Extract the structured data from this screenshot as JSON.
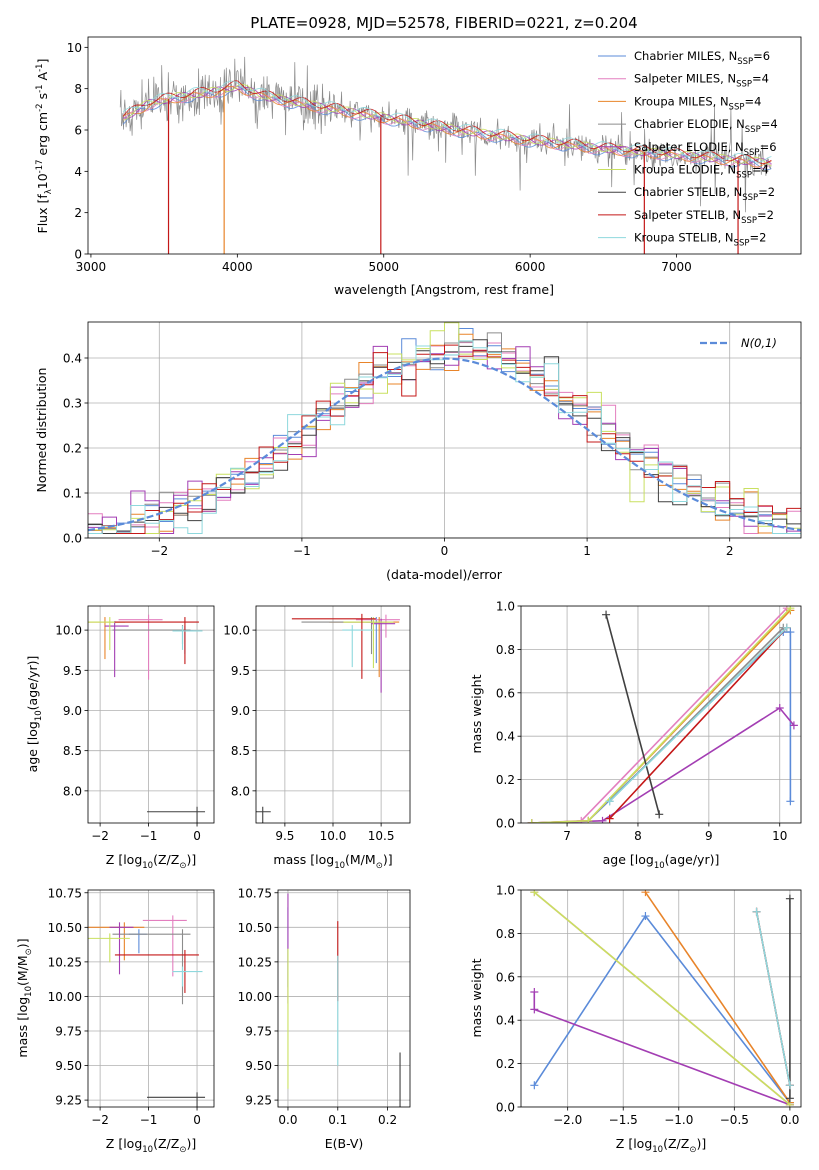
{
  "chart_data": [
    {
      "id": "spectrum",
      "type": "line",
      "title": "PLATE=0928, MJD=52578, FIBERID=0221, z=0.204",
      "xlabel": "wavelength [Angstrom, rest frame]",
      "ylabel": "Flux [f$_\\lambda$10$^{-17}$ erg cm$^{-2}$ s$^{-1}$ A$^{-1}$]",
      "xlim": [
        2980,
        7850
      ],
      "ylim": [
        0,
        10.5
      ],
      "xticks": [
        3000,
        4000,
        5000,
        6000,
        7000
      ],
      "yticks": [
        0,
        2,
        4,
        6,
        8,
        10
      ],
      "legend_position": "top-right",
      "data_envelope": {
        "x": [
          3200,
          3400,
          3600,
          3800,
          4000,
          4200,
          4500,
          5000,
          5500,
          6000,
          6500,
          7000,
          7300,
          7650
        ],
        "y": [
          6.5,
          7.3,
          7.6,
          7.8,
          8.1,
          7.6,
          7.2,
          6.6,
          6.0,
          5.5,
          5.1,
          4.8,
          4.6,
          4.4
        ]
      },
      "model_dips_x": [
        3530,
        3910,
        4980,
        6780,
        7420
      ],
      "series": [
        {
          "name": "Chabrier MILES, N$_{SSP}$=6",
          "color": "#5b8bd9"
        },
        {
          "name": "Salpeter MILES, N$_{SSP}$=4",
          "color": "#e37fbf"
        },
        {
          "name": "Kroupa MILES, N$_{SSP}$=4",
          "color": "#e8842a"
        },
        {
          "name": "Chabrier ELODIE, N$_{SSP}$=4",
          "color": "#8c8c8c"
        },
        {
          "name": "Salpeter ELODIE, N$_{SSP}$=6",
          "color": "#a33eb3"
        },
        {
          "name": "Kroupa ELODIE, N$_{SSP}$=4",
          "color": "#c9e060"
        },
        {
          "name": "Chabrier STELIB, N$_{SSP}$=2",
          "color": "#404040"
        },
        {
          "name": "Salpeter STELIB, N$_{SSP}$=2",
          "color": "#c41818"
        },
        {
          "name": "Kroupa STELIB, N$_{SSP}$=2",
          "color": "#8ed8dd"
        }
      ]
    },
    {
      "id": "residuals",
      "type": "line",
      "xlabel": "(data-model)/error",
      "ylabel": "Normed distribution",
      "xlim": [
        -2.5,
        2.5
      ],
      "ylim": [
        0,
        0.48
      ],
      "xticks": [
        -2,
        -1,
        0,
        1,
        2
      ],
      "yticks": [
        0.0,
        0.1,
        0.2,
        0.3,
        0.4
      ],
      "legend": "$\\mathcal{N}(0,1)$",
      "legend_position": "top-right",
      "grid": true
    },
    {
      "id": "age_vs_Z",
      "type": "scatter",
      "xlabel": "Z [log$_{10}$(Z/Z$_\\odot$)]",
      "ylabel": "age  [log$_{10}$(age/yr)]",
      "xlim": [
        -2.25,
        0.35
      ],
      "ylim": [
        7.6,
        10.3
      ],
      "xticks": [
        -2,
        -1,
        0
      ],
      "yticks": [
        8.0,
        8.5,
        9.0,
        9.5,
        10.0
      ],
      "grid": true,
      "points": [
        {
          "s": 0,
          "x": -0.25,
          "y": 9.99
        },
        {
          "s": 1,
          "x": -1.0,
          "y": 10.13
        },
        {
          "s": 2,
          "x": -1.9,
          "y": 10.1
        },
        {
          "s": 3,
          "x": -0.3,
          "y": 10.0
        },
        {
          "s": 4,
          "x": -1.7,
          "y": 10.05
        },
        {
          "s": 5,
          "x": -1.8,
          "y": 10.1
        },
        {
          "s": 6,
          "x": 0.0,
          "y": 7.74
        },
        {
          "s": 7,
          "x": -0.25,
          "y": 10.1
        },
        {
          "s": 8,
          "x": -0.3,
          "y": 9.99
        }
      ]
    },
    {
      "id": "age_vs_mass",
      "type": "scatter",
      "xlabel": "mass [log$_{10}$(M/M$_\\odot$)]",
      "ylabel": "",
      "xlim": [
        9.2,
        10.8
      ],
      "ylim": [
        7.6,
        10.3
      ],
      "xticks": [
        9.5,
        10.0,
        10.5
      ],
      "yticks": [
        8.0,
        8.5,
        9.0,
        9.5,
        10.0
      ],
      "grid": true,
      "points": [
        {
          "s": 0,
          "x": 10.45,
          "y": 10.1
        },
        {
          "s": 1,
          "x": 10.55,
          "y": 10.13
        },
        {
          "s": 2,
          "x": 10.48,
          "y": 10.1
        },
        {
          "s": 3,
          "x": 10.4,
          "y": 10.1
        },
        {
          "s": 4,
          "x": 10.5,
          "y": 10.08
        },
        {
          "s": 5,
          "x": 10.42,
          "y": 10.1
        },
        {
          "s": 6,
          "x": 9.27,
          "y": 7.74
        },
        {
          "s": 7,
          "x": 10.3,
          "y": 10.14
        },
        {
          "s": 8,
          "x": 10.2,
          "y": 10.0
        }
      ]
    },
    {
      "id": "weight_vs_age",
      "type": "line",
      "xlabel": "age  [log$_{10}$(age/yr)]",
      "ylabel": "mass weight",
      "xlim": [
        6.35,
        10.3
      ],
      "ylim": [
        0,
        1.0
      ],
      "xticks": [
        7,
        8,
        9,
        10
      ],
      "yticks": [
        0.0,
        0.2,
        0.4,
        0.6,
        0.8,
        1.0
      ],
      "grid": true,
      "series_points": [
        {
          "s": 0,
          "x": [
            6.5,
            7.3,
            10.05,
            10.15,
            10.15
          ],
          "y": [
            0.0,
            0.01,
            0.88,
            0.88,
            0.1
          ]
        },
        {
          "s": 1,
          "x": [
            6.5,
            7.2,
            10.1
          ],
          "y": [
            0.0,
            0.01,
            0.99
          ]
        },
        {
          "s": 2,
          "x": [
            6.5,
            7.3,
            10.15
          ],
          "y": [
            0.0,
            0.01,
            0.98
          ]
        },
        {
          "s": 3,
          "x": [
            7.6,
            10.05
          ],
          "y": [
            0.1,
            0.9
          ]
        },
        {
          "s": 4,
          "x": [
            6.5,
            7.5,
            10.0,
            10.2
          ],
          "y": [
            0.0,
            0.01,
            0.53,
            0.45
          ]
        },
        {
          "s": 5,
          "x": [
            6.5,
            7.3,
            10.15
          ],
          "y": [
            0.0,
            0.01,
            0.99
          ]
        },
        {
          "s": 6,
          "x": [
            7.55,
            8.3
          ],
          "y": [
            0.96,
            0.04
          ]
        },
        {
          "s": 7,
          "x": [
            7.6,
            10.1
          ],
          "y": [
            0.02,
            0.9
          ]
        },
        {
          "s": 8,
          "x": [
            7.6,
            10.1
          ],
          "y": [
            0.1,
            0.9
          ]
        }
      ]
    },
    {
      "id": "mass_vs_Z",
      "type": "scatter",
      "xlabel": "Z [log$_{10}$(Z/Z$_\\odot$)]",
      "ylabel": "mass [log$_{10}$(M/M$_\\odot$)]",
      "xlim": [
        -2.25,
        0.35
      ],
      "ylim": [
        9.2,
        10.77
      ],
      "xticks": [
        -2,
        -1,
        0
      ],
      "yticks": [
        9.25,
        9.5,
        9.75,
        10.0,
        10.25,
        10.5,
        10.75
      ],
      "grid": true,
      "points": [
        {
          "s": 0,
          "x": -1.2,
          "y": 10.45
        },
        {
          "s": 1,
          "x": -0.5,
          "y": 10.55
        },
        {
          "s": 2,
          "x": -1.5,
          "y": 10.5
        },
        {
          "s": 3,
          "x": -0.3,
          "y": 10.45
        },
        {
          "s": 4,
          "x": -1.6,
          "y": 10.5
        },
        {
          "s": 5,
          "x": -1.8,
          "y": 10.42
        },
        {
          "s": 6,
          "x": 0.0,
          "y": 9.27
        },
        {
          "s": 7,
          "x": -0.25,
          "y": 10.3
        },
        {
          "s": 8,
          "x": -0.3,
          "y": 10.18
        }
      ]
    },
    {
      "id": "mass_vs_EBV",
      "type": "scatter",
      "xlabel": "E(B-V)",
      "ylabel": "",
      "xlim": [
        -0.02,
        0.245
      ],
      "ylim": [
        9.2,
        10.77
      ],
      "xticks": [
        0.0,
        0.1,
        0.2
      ],
      "yticks": [
        9.25,
        9.5,
        9.75,
        10.0,
        10.25,
        10.5,
        10.75
      ],
      "grid": true,
      "points": [
        {
          "s": 0,
          "x": 0.0,
          "y": 10.5
        },
        {
          "s": 4,
          "x": 0.0,
          "y": 10.6
        },
        {
          "s": 5,
          "x": 0.0,
          "y": 10.2
        },
        {
          "s": 7,
          "x": 0.1,
          "y": 10.4
        },
        {
          "s": 8,
          "x": 0.1,
          "y": 10.15
        },
        {
          "s": 6,
          "x": 0.225,
          "y": 9.45
        }
      ]
    },
    {
      "id": "weight_vs_Z",
      "type": "line",
      "xlabel": "Z [log$_{10}$(Z/Z$_\\odot$)]",
      "ylabel": "mass weight",
      "xlim": [
        -2.42,
        0.1
      ],
      "ylim": [
        0,
        1.0
      ],
      "xticks": [
        -2.0,
        -1.5,
        -1.0,
        -0.5,
        0.0
      ],
      "yticks": [
        0.0,
        0.2,
        0.4,
        0.6,
        0.8,
        1.0
      ],
      "grid": true,
      "series_points": [
        {
          "s": 0,
          "x": [
            -2.3,
            -1.3,
            0.0
          ],
          "y": [
            0.1,
            0.88,
            0.02
          ]
        },
        {
          "s": 1,
          "x": [
            -2.3,
            0.0
          ],
          "y": [
            0.99,
            0.01
          ]
        },
        {
          "s": 2,
          "x": [
            -1.3,
            0.0
          ],
          "y": [
            0.99,
            0.02
          ]
        },
        {
          "s": 3,
          "x": [
            -0.3,
            0.0
          ],
          "y": [
            0.9,
            0.1
          ]
        },
        {
          "s": 4,
          "x": [
            -2.3,
            -2.3,
            0.0
          ],
          "y": [
            0.53,
            0.45,
            0.01
          ]
        },
        {
          "s": 5,
          "x": [
            -2.3,
            0.0
          ],
          "y": [
            0.99,
            0.01
          ]
        },
        {
          "s": 6,
          "x": [
            0.0,
            0.0
          ],
          "y": [
            0.96,
            0.04
          ]
        },
        {
          "s": 7,
          "x": [
            -0.3,
            0.0
          ],
          "y": [
            0.9,
            0.1
          ]
        },
        {
          "s": 8,
          "x": [
            -0.3,
            0.0
          ],
          "y": [
            0.9,
            0.1
          ]
        }
      ]
    }
  ]
}
